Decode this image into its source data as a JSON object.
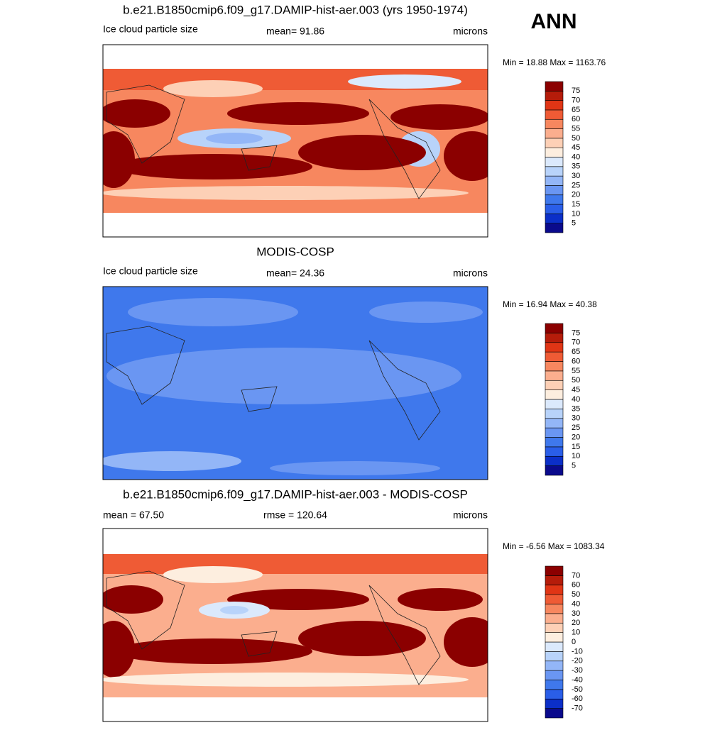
{
  "season": "ANN",
  "panels": [
    {
      "title": "b.e21.B1850cmip6.f09_g17.DAMIP-hist-aer.003 (yrs 1950-1974)",
      "left": "Ice cloud particle size",
      "center": "mean=  91.86",
      "right": "microns",
      "range": "Min =  18.88 Max = 1163.76",
      "colorbar": {
        "levels": [
          5,
          10,
          15,
          20,
          25,
          30,
          35,
          40,
          45,
          50,
          55,
          60,
          65,
          70,
          75
        ],
        "colors": [
          "#0a0a8c",
          "#0b2fc8",
          "#2a5ee8",
          "#3f78ec",
          "#6a96f2",
          "#93b6f7",
          "#b8d3fa",
          "#dbe9fc",
          "#fdeedf",
          "#fdd0b6",
          "#fbae8e",
          "#f7875f",
          "#ef5b35",
          "#e03515",
          "#b51c0a",
          "#8b0000"
        ]
      }
    },
    {
      "title": "MODIS-COSP",
      "left": "Ice cloud particle size",
      "center": "mean=  24.36",
      "right": "microns",
      "range": "Min =  16.94 Max =  40.38",
      "colorbar": {
        "levels": [
          5,
          10,
          15,
          20,
          25,
          30,
          35,
          40,
          45,
          50,
          55,
          60,
          65,
          70,
          75
        ],
        "colors": [
          "#0a0a8c",
          "#0b2fc8",
          "#2a5ee8",
          "#3f78ec",
          "#6a96f2",
          "#93b6f7",
          "#b8d3fa",
          "#dbe9fc",
          "#fdeedf",
          "#fdd0b6",
          "#fbae8e",
          "#f7875f",
          "#ef5b35",
          "#e03515",
          "#b51c0a",
          "#8b0000"
        ]
      }
    },
    {
      "title": "b.e21.B1850cmip6.f09_g17.DAMIP-hist-aer.003 - MODIS-COSP",
      "left": "mean =  67.50",
      "center": "rmse = 120.64",
      "right": "microns",
      "range": "Min =  -6.56 Max = 1083.34",
      "colorbar": {
        "levels": [
          -70,
          -60,
          -50,
          -40,
          -30,
          -20,
          -10,
          0,
          10,
          20,
          30,
          40,
          50,
          60,
          70
        ],
        "colors": [
          "#0a0a8c",
          "#0b2fc8",
          "#2a5ee8",
          "#3f78ec",
          "#6a96f2",
          "#93b6f7",
          "#b8d3fa",
          "#dbe9fc",
          "#fdeedf",
          "#fdd0b6",
          "#fbae8e",
          "#f7875f",
          "#ef5b35",
          "#e03515",
          "#b51c0a",
          "#8b0000"
        ]
      }
    }
  ]
}
